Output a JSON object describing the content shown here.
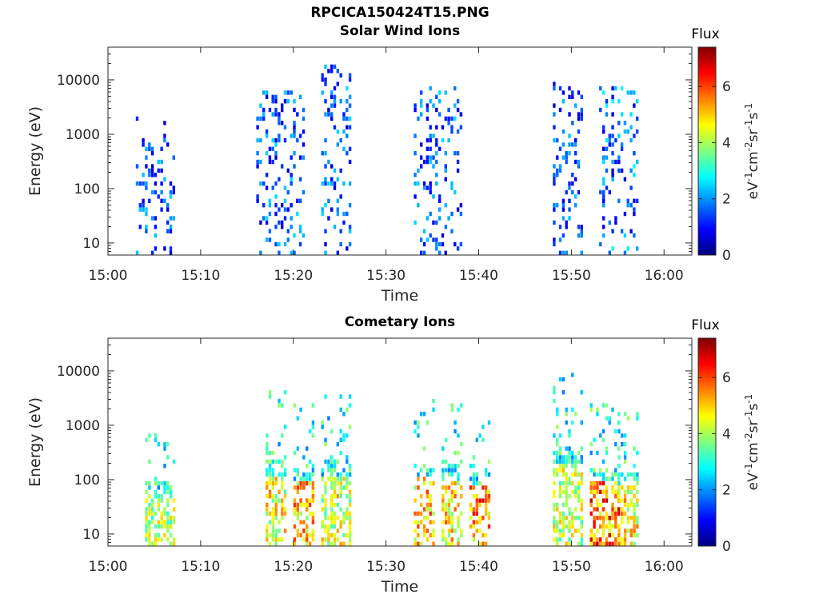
{
  "figure": {
    "title": "RPCICA150424T15.PNG"
  },
  "chart_data": [
    {
      "type": "heatmap",
      "title": "Solar Wind Ions",
      "xlabel": "Time",
      "ylabel": "Energy (eV)",
      "x_ticks": [
        "15:00",
        "15:10",
        "15:20",
        "15:30",
        "15:40",
        "15:50",
        "16:00"
      ],
      "xlim": [
        "15:00",
        "16:03"
      ],
      "y_scale": "log",
      "y_ticks": [
        10,
        100,
        1000,
        10000
      ],
      "y_tick_labels": [
        "10",
        "100",
        "1000",
        "10000"
      ],
      "ylim": [
        6,
        40000
      ],
      "colorbar": {
        "title": "Flux",
        "label": "eV-1cm-2sr-1s-1",
        "ticks": [
          0,
          2,
          4,
          6
        ],
        "range": [
          0,
          7.4
        ],
        "colormap": "jet"
      },
      "bursts": [
        {
          "start": "15:03",
          "end": "15:07",
          "energy_min": 6,
          "energy_max": 1800,
          "flux_max": 2.5
        },
        {
          "start": "15:16",
          "end": "15:21",
          "energy_min": 6,
          "energy_max": 6000,
          "flux_max": 2.6
        },
        {
          "start": "15:23",
          "end": "15:26",
          "energy_min": 6,
          "energy_max": 17000,
          "flux_max": 2.6
        },
        {
          "start": "15:33",
          "end": "15:38",
          "energy_min": 6,
          "energy_max": 7000,
          "flux_max": 2.6
        },
        {
          "start": "15:48",
          "end": "15:51",
          "energy_min": 6,
          "energy_max": 9000,
          "flux_max": 2.4
        },
        {
          "start": "15:53",
          "end": "15:57",
          "energy_min": 6,
          "energy_max": 7000,
          "flux_max": 2.8
        }
      ]
    },
    {
      "type": "heatmap",
      "title": "Cometary Ions",
      "xlabel": "Time",
      "ylabel": "Energy (eV)",
      "x_ticks": [
        "15:00",
        "15:10",
        "15:20",
        "15:30",
        "15:40",
        "15:50",
        "16:00"
      ],
      "xlim": [
        "15:00",
        "16:03"
      ],
      "y_scale": "log",
      "y_ticks": [
        10,
        100,
        1000,
        10000
      ],
      "y_tick_labels": [
        "10",
        "100",
        "1000",
        "10000"
      ],
      "ylim": [
        6,
        40000
      ],
      "colorbar": {
        "title": "Flux",
        "label": "eV-1cm-2sr-1s-1",
        "ticks": [
          0,
          2,
          4,
          6
        ],
        "range": [
          0,
          7.4
        ],
        "colormap": "jet"
      },
      "bursts": [
        {
          "start": "15:04",
          "end": "15:07",
          "energy_min": 6,
          "energy_max": 700,
          "flux_max": 5.0
        },
        {
          "start": "15:17",
          "end": "15:19",
          "energy_min": 6,
          "energy_max": 3800,
          "flux_max": 5.6
        },
        {
          "start": "15:20",
          "end": "15:22",
          "energy_min": 6,
          "energy_max": 2200,
          "flux_max": 6.2
        },
        {
          "start": "15:23",
          "end": "15:26",
          "energy_min": 6,
          "energy_max": 3800,
          "flux_max": 5.4
        },
        {
          "start": "15:33",
          "end": "15:35",
          "energy_min": 6,
          "energy_max": 3000,
          "flux_max": 6.2
        },
        {
          "start": "15:36",
          "end": "15:38",
          "energy_min": 6,
          "energy_max": 2500,
          "flux_max": 6.0
        },
        {
          "start": "15:39",
          "end": "15:41",
          "energy_min": 6,
          "energy_max": 1500,
          "flux_max": 6.8
        },
        {
          "start": "15:48",
          "end": "15:51",
          "energy_min": 6,
          "energy_max": 11000,
          "flux_max": 5.2
        },
        {
          "start": "15:52",
          "end": "15:55",
          "energy_min": 6,
          "energy_max": 2200,
          "flux_max": 7.0
        },
        {
          "start": "15:55",
          "end": "15:57",
          "energy_min": 6,
          "energy_max": 1700,
          "flux_max": 5.8
        }
      ]
    }
  ]
}
